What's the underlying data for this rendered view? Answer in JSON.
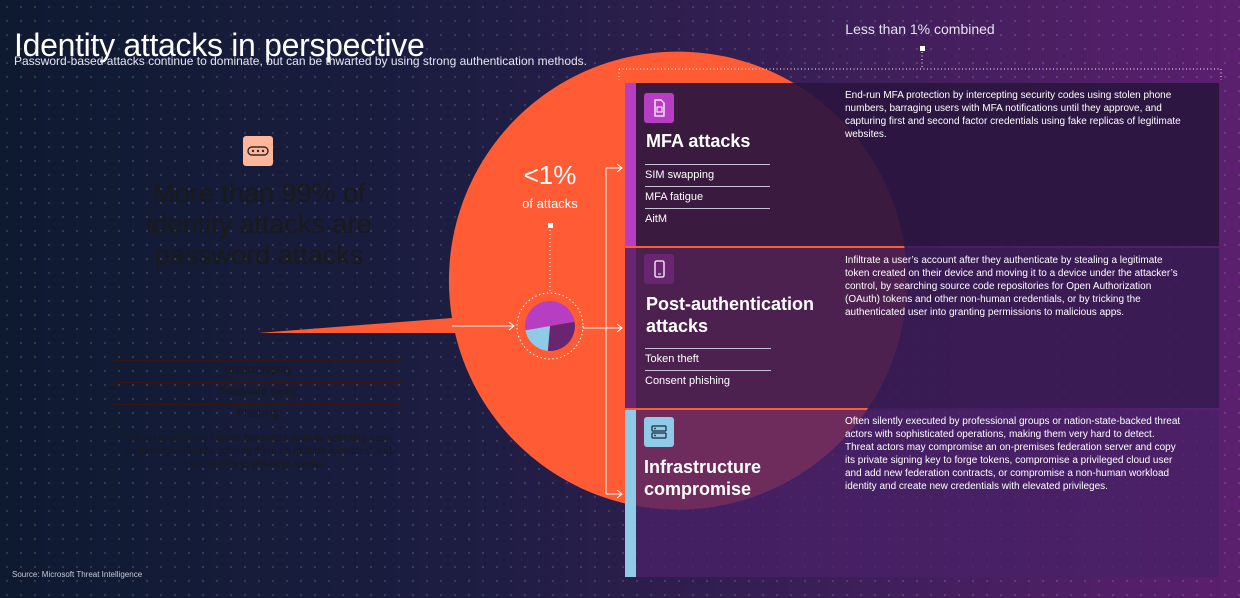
{
  "header": {
    "title": "Identity attacks in perspective",
    "subtitle": "Password-based attacks continue to dominate, but can be thwarted by using strong authentication methods."
  },
  "password_attacks": {
    "headline": "More than 99% of identity attacks are password attacks",
    "types": [
      "Breach replay",
      "Password spray",
      "Phishing"
    ],
    "description": "Rely on predictable human behaviors such as selecting easy-to-guess passwords, reusing them on multiple websites, and falling prey to phishing attacks.",
    "icon": "password-field-icon"
  },
  "other_attacks": {
    "percent_label": "<1%",
    "percent_sublabel": "of attacks",
    "combined_label": "Less than 1% combined"
  },
  "categories": [
    {
      "title": "MFA attacks",
      "types": [
        "SIM swapping",
        "MFA fatigue",
        "AitM"
      ],
      "description": "End-run MFA protection by intercepting security codes using stolen phone numbers, barraging users with MFA notifications until they approve, and capturing first and second factor credentials using fake replicas of legitimate websites.",
      "icon": "sim-card-icon"
    },
    {
      "title": "Post-authentication attacks",
      "types": [
        "Token theft",
        "Consent phishing"
      ],
      "description": "Infiltrate a user’s account after they authenticate by stealing a legitimate token created on their device and moving it to a device under the attacker’s control, by searching source code repositories for Open Authorization (OAuth) tokens and other non-human credentials, or by tricking the authenticated user into granting permissions to malicious apps.",
      "icon": "mobile-device-icon"
    },
    {
      "title": "Infrastructure compromise",
      "types": [],
      "description": "Often silently executed by professional groups or nation-state-backed threat actors with sophisticated operations, making them very hard to detect. Threat actors may compromise an on-premises federation server and copy its private signing key to forge tokens, compromise a privileged cloud user and add new federation contracts, or compromise a non-human workload identity and create new credentials with elevated privileges.",
      "icon": "server-icon"
    }
  ],
  "colors": {
    "password": "#ff5b35",
    "mfa": "#b73ec2",
    "post_auth": "#6a2570",
    "infrastructure": "#8fcbe6"
  },
  "footer": {
    "source": "Source: Microsoft Threat Intelligence"
  }
}
